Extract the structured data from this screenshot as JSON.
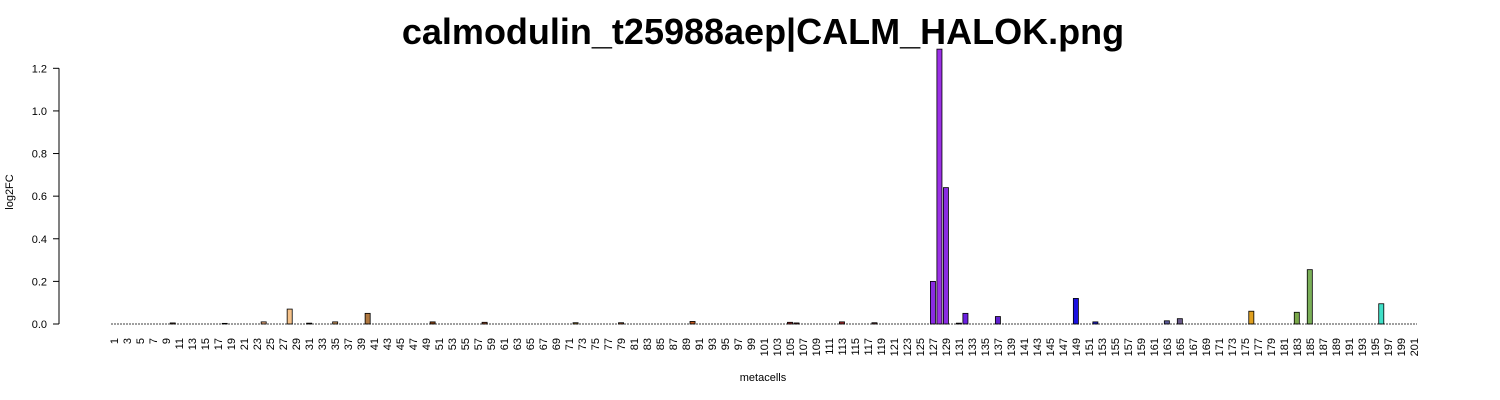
{
  "chart_data": {
    "type": "bar",
    "title": "calmodulin_t25988aep|CALM_HALOK.png",
    "xlabel": "metacells",
    "ylabel": "log2FC",
    "ylim": [
      0,
      1.3
    ],
    "yticks": [
      "0.0",
      "0.2",
      "0.4",
      "0.6",
      "0.8",
      "1.0",
      "1.2"
    ],
    "category_count": 201,
    "x_tick_labels": [
      "1",
      "3",
      "5",
      "7",
      "9",
      "11",
      "13",
      "15",
      "17",
      "19",
      "21",
      "23",
      "25",
      "27",
      "29",
      "31",
      "33",
      "35",
      "37",
      "39",
      "41",
      "43",
      "45",
      "47",
      "49",
      "51",
      "53",
      "55",
      "57",
      "59",
      "61",
      "63",
      "65",
      "67",
      "69",
      "71",
      "73",
      "75",
      "77",
      "79",
      "81",
      "83",
      "85",
      "87",
      "89",
      "91",
      "93",
      "95",
      "97",
      "99",
      "101",
      "103",
      "105",
      "107",
      "109",
      "111",
      "113",
      "115",
      "117",
      "119",
      "121",
      "123",
      "125",
      "127",
      "129",
      "131",
      "133",
      "135",
      "137",
      "139",
      "141",
      "143",
      "145",
      "147",
      "149",
      "151",
      "153",
      "155",
      "157",
      "159",
      "161",
      "163",
      "165",
      "167",
      "169",
      "171",
      "173",
      "175",
      "177",
      "179",
      "181",
      "183",
      "185",
      "187",
      "189",
      "191",
      "193",
      "195",
      "197",
      "199",
      "201"
    ],
    "grid": false,
    "legend": "none",
    "bars": [
      {
        "x": 10,
        "value": 0.005,
        "color": "#8b5a3c"
      },
      {
        "x": 18,
        "value": 0.003,
        "color": "#8b4513"
      },
      {
        "x": 24,
        "value": 0.01,
        "color": "#e8a87c"
      },
      {
        "x": 28,
        "value": 0.07,
        "color": "#f5c28a"
      },
      {
        "x": 31,
        "value": 0.004,
        "color": "#8b4513"
      },
      {
        "x": 35,
        "value": 0.01,
        "color": "#c8935a"
      },
      {
        "x": 40,
        "value": 0.05,
        "color": "#b07840"
      },
      {
        "x": 50,
        "value": 0.01,
        "color": "#8b4513"
      },
      {
        "x": 58,
        "value": 0.008,
        "color": "#a0522d"
      },
      {
        "x": 72,
        "value": 0.006,
        "color": "#9c7a2c"
      },
      {
        "x": 79,
        "value": 0.006,
        "color": "#b35a2a"
      },
      {
        "x": 90,
        "value": 0.012,
        "color": "#c0561e"
      },
      {
        "x": 105,
        "value": 0.008,
        "color": "#9b2d2d"
      },
      {
        "x": 106,
        "value": 0.005,
        "color": "#8b3030"
      },
      {
        "x": 113,
        "value": 0.01,
        "color": "#a52a2a"
      },
      {
        "x": 118,
        "value": 0.006,
        "color": "#6b3a3a"
      },
      {
        "x": 127,
        "value": 0.2,
        "color": "#8a2be2"
      },
      {
        "x": 128,
        "value": 1.29,
        "color": "#9b30e6"
      },
      {
        "x": 129,
        "value": 0.64,
        "color": "#8a2be2"
      },
      {
        "x": 131,
        "value": 0.004,
        "color": "#7b2fd0"
      },
      {
        "x": 132,
        "value": 0.05,
        "color": "#6a1fe0"
      },
      {
        "x": 137,
        "value": 0.035,
        "color": "#6020d0"
      },
      {
        "x": 149,
        "value": 0.12,
        "color": "#1a10e0"
      },
      {
        "x": 152,
        "value": 0.01,
        "color": "#2020c0"
      },
      {
        "x": 163,
        "value": 0.015,
        "color": "#5a5a9a"
      },
      {
        "x": 165,
        "value": 0.025,
        "color": "#6a5a8a"
      },
      {
        "x": 176,
        "value": 0.06,
        "color": "#e0a020"
      },
      {
        "x": 183,
        "value": 0.055,
        "color": "#7aa84a"
      },
      {
        "x": 185,
        "value": 0.255,
        "color": "#7aaf58"
      },
      {
        "x": 196,
        "value": 0.095,
        "color": "#40e0c8"
      }
    ]
  }
}
